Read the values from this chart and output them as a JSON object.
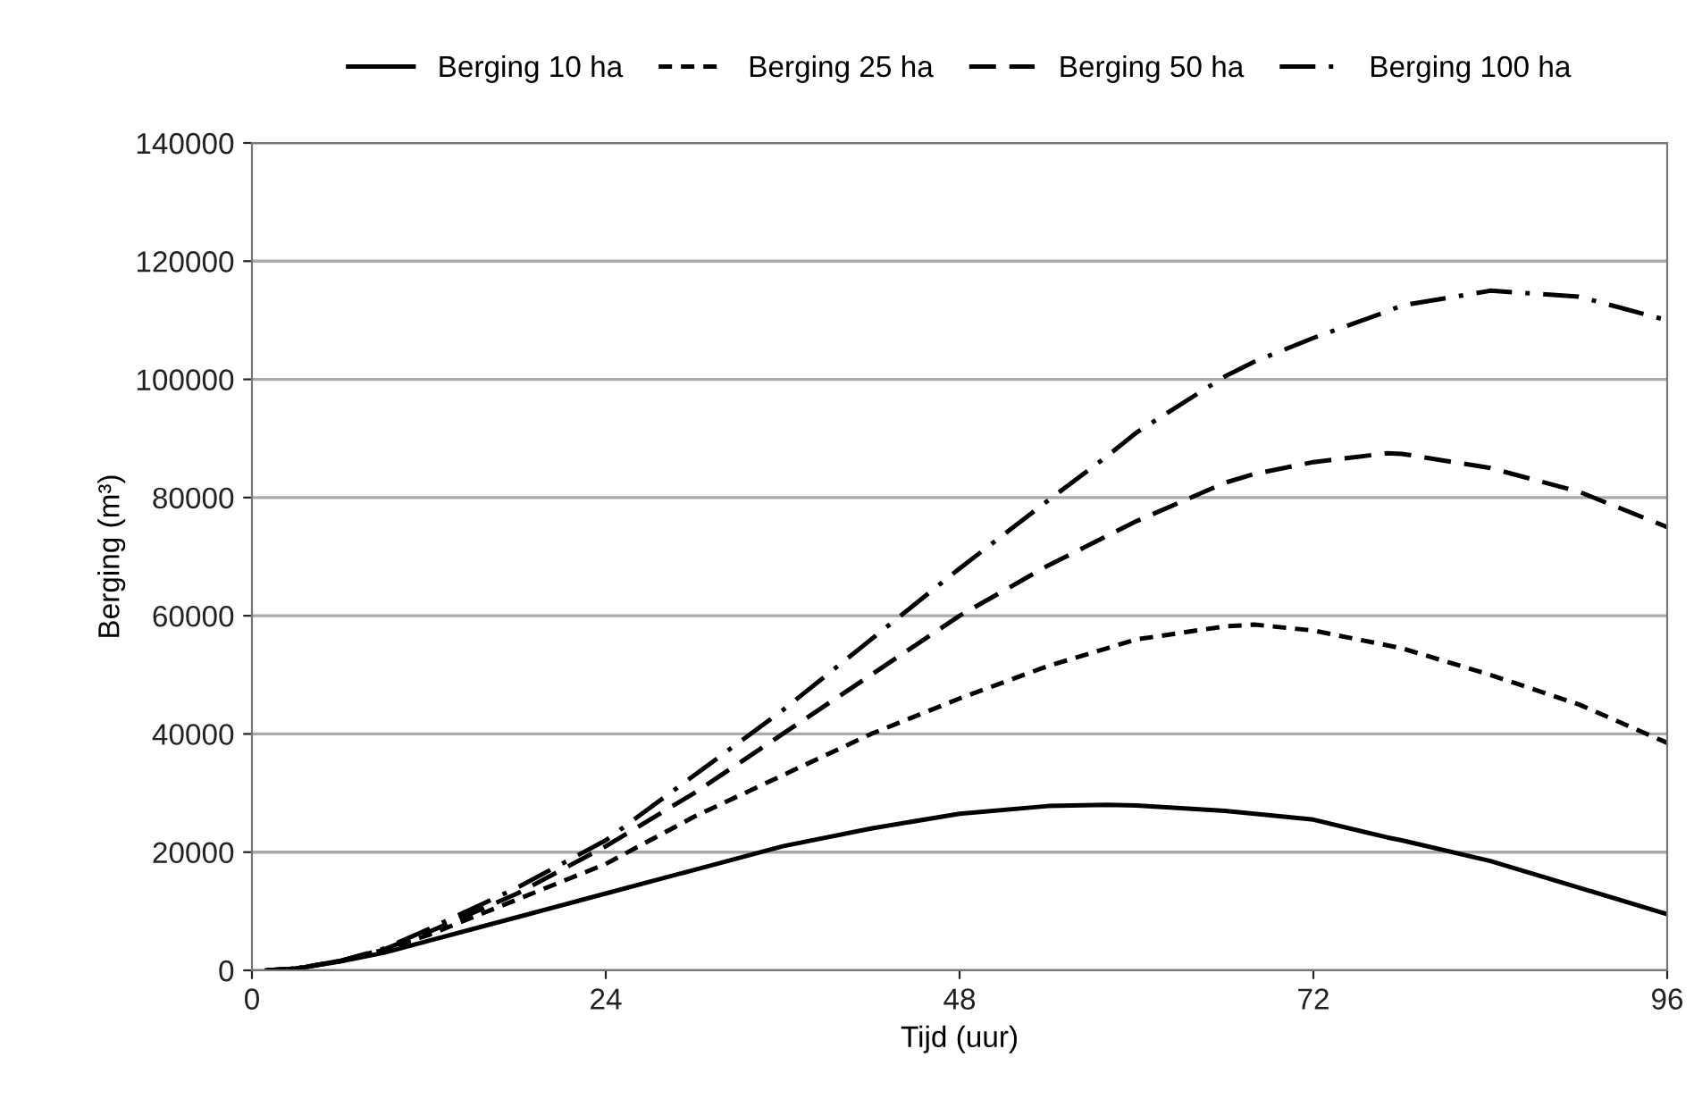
{
  "chart_data": {
    "type": "line",
    "xlabel": "Tijd (uur)",
    "ylabel": "Berging (m³)",
    "xlim": [
      0,
      96
    ],
    "xticks": [
      0,
      24,
      48,
      72,
      96
    ],
    "ylim": [
      0,
      140000
    ],
    "yticks": [
      0,
      20000,
      40000,
      60000,
      80000,
      100000,
      120000,
      140000
    ],
    "grid": "y",
    "legend": "top",
    "marker": "none",
    "x": [
      1,
      3,
      6,
      9,
      12,
      18,
      24,
      30,
      36,
      42,
      48,
      54,
      58,
      60,
      66,
      68,
      72,
      77,
      78,
      84,
      90,
      96
    ],
    "series": [
      {
        "name": "Berging 10 ha",
        "color": "#000000",
        "line_style": "solid",
        "values": [
          0,
          300,
          1500,
          3000,
          5000,
          9000,
          13000,
          17000,
          21000,
          24000,
          26500,
          27800,
          28000,
          27900,
          27000,
          26500,
          25500,
          22500,
          22000,
          18500,
          14000,
          9500
        ]
      },
      {
        "name": "Berging 25 ha",
        "color": "#000000",
        "line_style": "dotted",
        "values": [
          0,
          300,
          1600,
          3500,
          6000,
          12000,
          18000,
          26000,
          33000,
          40000,
          46000,
          51500,
          54500,
          56000,
          58200,
          58500,
          57500,
          55000,
          54500,
          50000,
          45000,
          38500
        ]
      },
      {
        "name": "Berging 50 ha",
        "color": "#000000",
        "line_style": "dashed",
        "values": [
          0,
          300,
          1600,
          3600,
          6500,
          13000,
          21000,
          30000,
          40000,
          50000,
          60000,
          68500,
          73500,
          76000,
          82500,
          84000,
          86000,
          87500,
          87400,
          85000,
          81000,
          75000
        ]
      },
      {
        "name": "Berging 100 ha",
        "color": "#000000",
        "line_style": "dashdot",
        "values": [
          0,
          300,
          1600,
          3700,
          7000,
          14000,
          22000,
          33000,
          44000,
          56000,
          68000,
          79500,
          87000,
          91000,
          100500,
          103000,
          107000,
          111500,
          112500,
          115000,
          114000,
          110000
        ]
      }
    ]
  }
}
